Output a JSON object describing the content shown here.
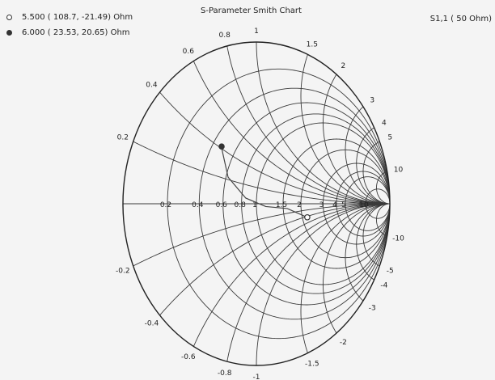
{
  "chart_data": {
    "type": "smith",
    "title": "S-Parameter Smith Chart",
    "parameter_label": "S1,1 ( 50 Ohm)",
    "reference_impedance": 50,
    "legend": [
      {
        "marker": "open-circle",
        "text": "5.500 ( 108.7, -21.49) Ohm",
        "x": 5.5,
        "r": 108.7,
        "xi": -21.49
      },
      {
        "marker": "filled-circle",
        "text": "6.000 ( 23.53, 20.65) Ohm",
        "x": 6.0,
        "r": 23.53,
        "xi": 20.65
      }
    ],
    "resistance_circles": [
      0.2,
      0.4,
      0.6,
      0.8,
      1,
      1.5,
      2,
      3,
      4,
      5,
      10
    ],
    "reactance_arcs": [
      0.2,
      0.4,
      0.6,
      0.8,
      1,
      1.5,
      2,
      3,
      4,
      5,
      10
    ],
    "resistance_tick_labels": [
      "0.2",
      "0.4",
      "0.6",
      "0.8",
      "1",
      "1.5",
      "2",
      "3",
      "4",
      "5",
      "10"
    ],
    "reactance_tick_labels": [
      {
        "x": 0.2,
        "text": "0.2"
      },
      {
        "x": 0.4,
        "text": "0.4"
      },
      {
        "x": 0.6,
        "text": "0.6"
      },
      {
        "x": 0.8,
        "text": "0.8"
      },
      {
        "x": 1,
        "text": "1"
      },
      {
        "x": 1.5,
        "text": "1.5"
      },
      {
        "x": 2,
        "text": "2"
      },
      {
        "x": 3,
        "text": "3"
      },
      {
        "x": 4,
        "text": "4"
      },
      {
        "x": 5,
        "text": "5"
      },
      {
        "x": 10,
        "text": "10"
      },
      {
        "x": -0.2,
        "text": "-0.2"
      },
      {
        "x": -0.4,
        "text": "-0.4"
      },
      {
        "x": -0.6,
        "text": "-0.6"
      },
      {
        "x": -0.8,
        "text": "-0.8"
      },
      {
        "x": -1,
        "text": "-1"
      },
      {
        "x": -1.5,
        "text": "-1.5"
      },
      {
        "x": -2,
        "text": "-2"
      },
      {
        "x": -3,
        "text": "-3"
      },
      {
        "x": -4,
        "text": "-4"
      },
      {
        "x": -5,
        "text": "-5"
      },
      {
        "x": -10,
        "text": "-10"
      }
    ],
    "trace": {
      "points": [
        {
          "r": 0.47,
          "x": 0.41
        },
        {
          "r": 0.62,
          "x": 0.22
        },
        {
          "r": 0.85,
          "x": 0.06
        },
        {
          "r": 1.15,
          "x": -0.04
        },
        {
          "r": 1.6,
          "x": -0.1
        },
        {
          "r": 2.17,
          "x": -0.43
        }
      ]
    },
    "markers": [
      {
        "marker": "filled-circle",
        "r": 0.4706,
        "x": 0.413
      },
      {
        "marker": "open-circle",
        "r": 2.174,
        "x": -0.4298
      }
    ]
  }
}
